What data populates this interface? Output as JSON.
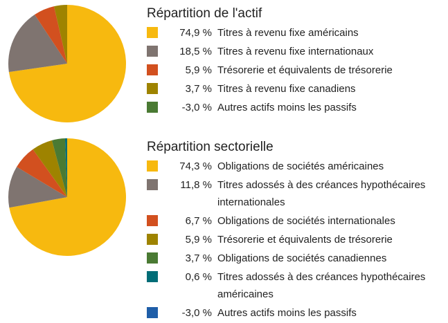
{
  "chart_data": [
    {
      "type": "pie",
      "title": "Répartition de l'actif",
      "categories": [
        "Titres à revenu fixe américains",
        "Titres à revenu fixe internationaux",
        "Trésorerie et équivalents de trésorerie",
        "Titres à revenu fixe canadiens",
        "Autres actifs moins les passifs"
      ],
      "values": [
        74.9,
        18.5,
        5.9,
        3.7,
        -3.0
      ],
      "value_labels": [
        "74,9 %",
        "18,5 %",
        "5,9 %",
        "3,7 %",
        "-3,0 %"
      ],
      "colors": [
        "#f7b90f",
        "#7f7470",
        "#d2501f",
        "#9e8300",
        "#4a7a33"
      ]
    },
    {
      "type": "pie",
      "title": "Répartition sectorielle",
      "categories": [
        "Obligations de sociétés américaines",
        "Titres adossés à des créances hypothécaires internationales",
        "Obligations de sociétés internationales",
        "Trésorerie et équivalents de trésorerie",
        "Obligations de sociétés canadiennes",
        "Titres adossés à des créances hypothécaires américaines",
        "Autres actifs moins les passifs"
      ],
      "values": [
        74.3,
        11.8,
        6.7,
        5.9,
        3.7,
        0.6,
        -3.0
      ],
      "value_labels": [
        "74,3 %",
        "11,8 %",
        "6,7 %",
        "5,9 %",
        "3,7 %",
        "0,6 %",
        "-3,0 %"
      ],
      "colors": [
        "#f7b90f",
        "#7f7470",
        "#d2501f",
        "#9e8300",
        "#4a7a33",
        "#006d77",
        "#1f5ea8"
      ]
    }
  ]
}
